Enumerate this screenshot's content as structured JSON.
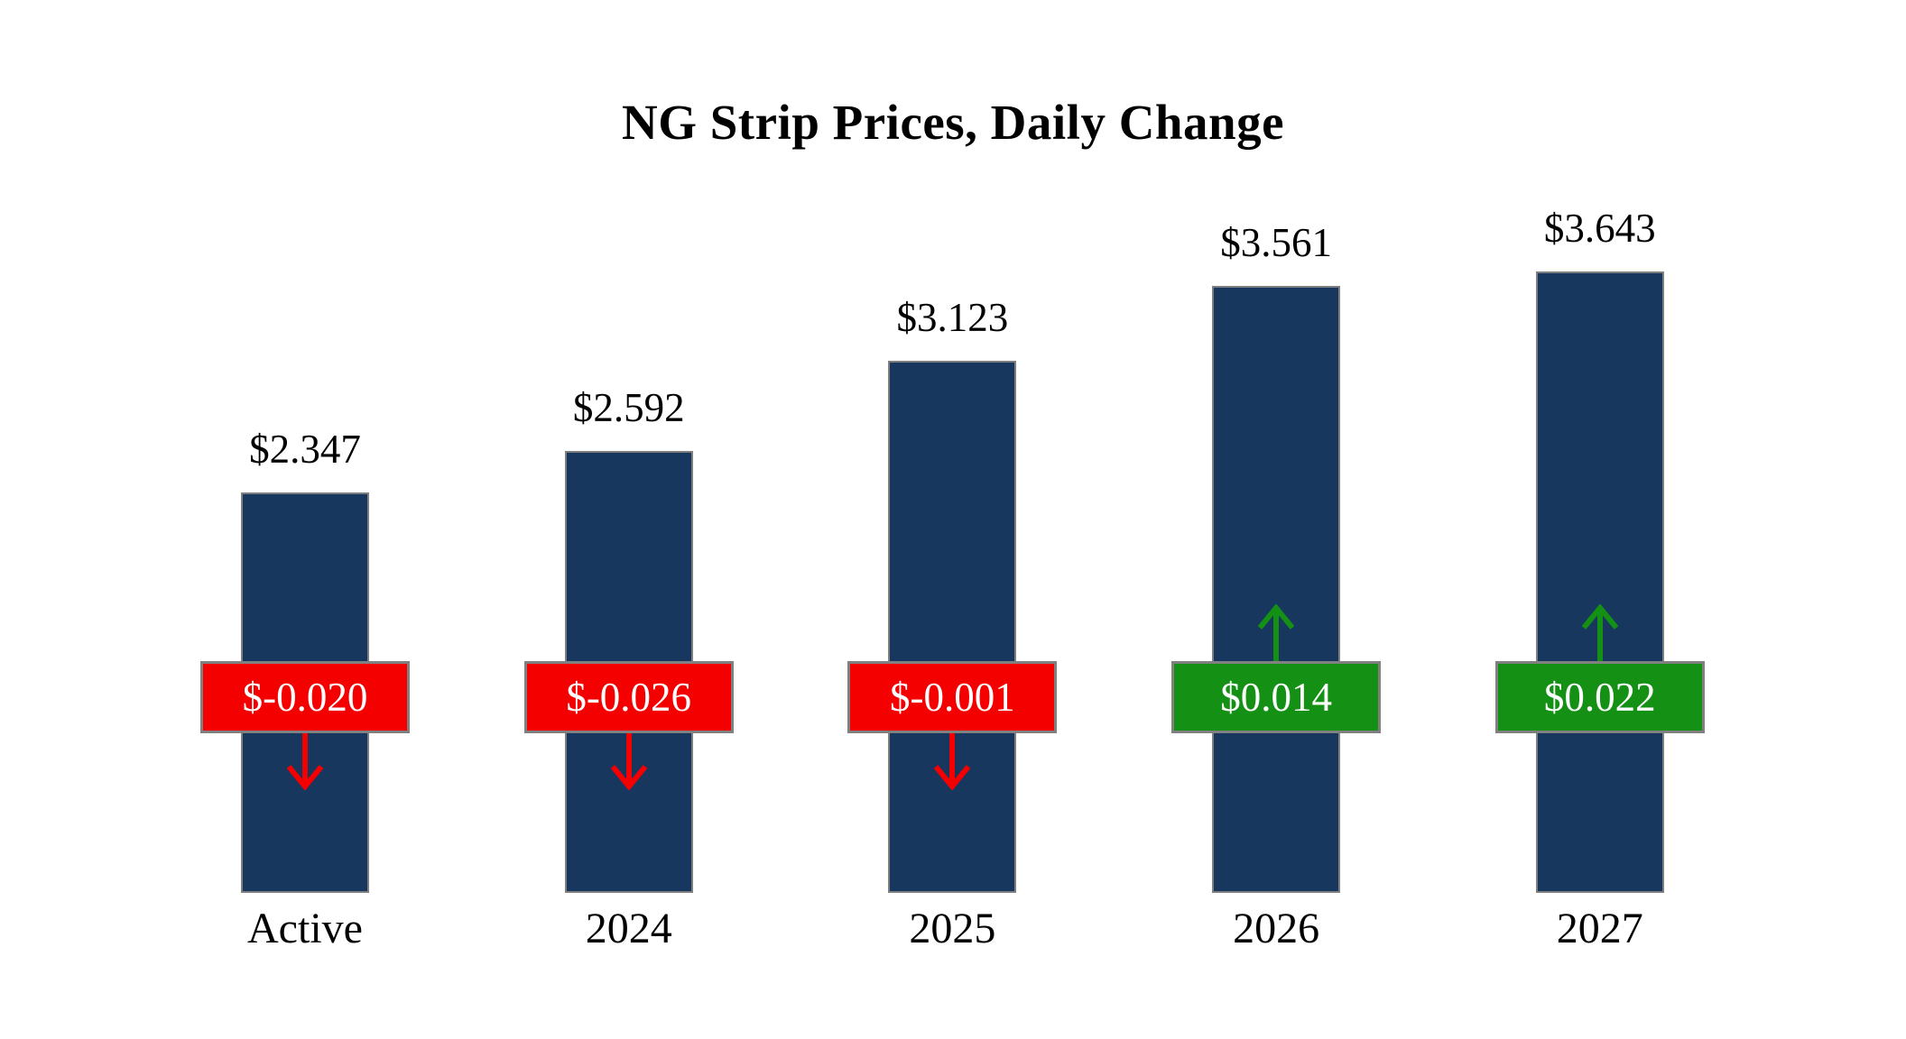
{
  "chart_data": {
    "type": "bar",
    "title": "NG Strip Prices, Daily Change",
    "categories": [
      "Active",
      "2024",
      "2025",
      "2026",
      "2027"
    ],
    "series": [
      {
        "name": "Strip Price",
        "values": [
          2.347,
          2.592,
          3.123,
          3.561,
          3.643
        ]
      },
      {
        "name": "Daily Change",
        "values": [
          -0.02,
          -0.026,
          -0.001,
          0.014,
          0.022
        ]
      }
    ],
    "value_labels": [
      "$2.347",
      "$2.592",
      "$3.123",
      "$3.561",
      "$3.643"
    ],
    "change_labels": [
      "$-0.020",
      "$-0.026",
      "$-0.001",
      "$0.014",
      "$0.022"
    ],
    "ylim": [
      0,
      3.9
    ],
    "grid": false,
    "legend": "none",
    "colors": {
      "bar": "#17375e",
      "negative": "#f40000",
      "positive": "#149114",
      "badge_border": "#808080",
      "badge_text": "#ffffff",
      "label_text": "#000000"
    }
  }
}
